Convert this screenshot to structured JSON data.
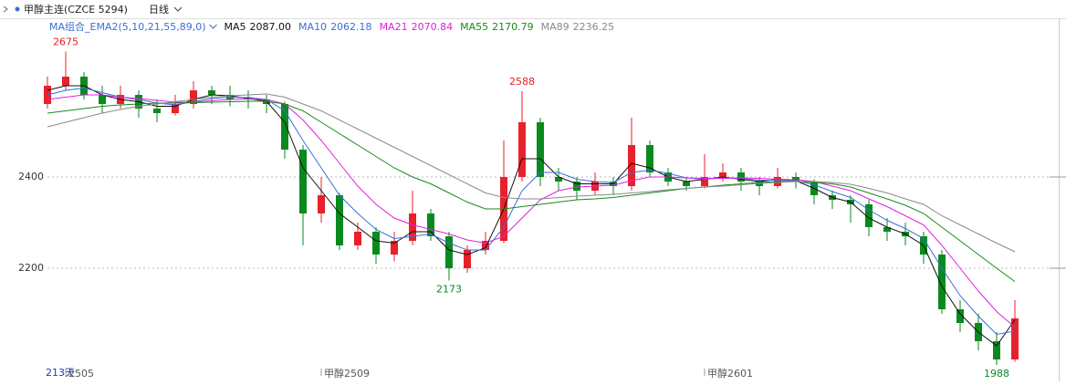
{
  "header": {
    "title": "甲醇主连(CZCE 5294)",
    "period": "日线"
  },
  "chart_data": {
    "type": "candlestick",
    "indicator": "MA组合_EMA2(5,10,21,55,89,0)",
    "span_label": "213天",
    "categories": [
      null,
      "2505",
      null,
      null,
      null,
      null,
      null,
      null,
      null,
      null,
      null,
      null,
      null,
      null,
      null,
      "甲醇2509",
      null,
      null,
      null,
      null,
      null,
      null,
      null,
      null,
      null,
      null,
      null,
      null,
      null,
      null,
      null,
      null,
      null,
      null,
      null,
      null,
      "甲醇2601",
      null,
      null,
      null,
      null,
      null,
      null,
      null,
      null,
      null,
      null,
      null,
      null,
      null,
      null,
      null,
      null,
      null
    ],
    "open": [
      2560,
      2600,
      2620,
      2580,
      2560,
      2580,
      2550,
      2540,
      2560,
      2590,
      2580,
      2575,
      2570,
      2560,
      2460,
      2320,
      2360,
      2250,
      2280,
      2230,
      2260,
      2320,
      2270,
      2200,
      2240,
      2260,
      2400,
      2520,
      2400,
      2390,
      2370,
      2390,
      2380,
      2470,
      2410,
      2390,
      2380,
      2400,
      2410,
      2390,
      2380,
      2400,
      2390,
      2360,
      2350,
      2340,
      2290,
      2280,
      2270,
      2230,
      2110,
      2080,
      2040,
      2000
    ],
    "high": [
      2620,
      2675,
      2630,
      2600,
      2600,
      2590,
      2570,
      2580,
      2610,
      2600,
      2600,
      2590,
      2580,
      2565,
      2470,
      2400,
      2365,
      2300,
      2290,
      2280,
      2370,
      2330,
      2280,
      2250,
      2280,
      2480,
      2588,
      2530,
      2420,
      2400,
      2410,
      2400,
      2530,
      2480,
      2420,
      2400,
      2450,
      2430,
      2420,
      2400,
      2420,
      2410,
      2395,
      2370,
      2360,
      2350,
      2310,
      2300,
      2280,
      2240,
      2130,
      2100,
      2060,
      2130
    ],
    "low": [
      2550,
      2590,
      2570,
      2540,
      2550,
      2530,
      2520,
      2535,
      2550,
      2560,
      2555,
      2550,
      2540,
      2440,
      2250,
      2300,
      2240,
      2240,
      2210,
      2215,
      2250,
      2260,
      2173,
      2190,
      2230,
      2255,
      2390,
      2380,
      2370,
      2350,
      2360,
      2360,
      2370,
      2400,
      2380,
      2370,
      2375,
      2390,
      2370,
      2360,
      2375,
      2375,
      2340,
      2330,
      2300,
      2270,
      2260,
      2250,
      2210,
      2100,
      2060,
      2020,
      1988,
      1995
    ],
    "close": [
      2600,
      2620,
      2580,
      2560,
      2580,
      2550,
      2540,
      2560,
      2590,
      2580,
      2570,
      2570,
      2560,
      2460,
      2320,
      2360,
      2250,
      2280,
      2230,
      2260,
      2320,
      2270,
      2200,
      2240,
      2260,
      2400,
      2520,
      2400,
      2390,
      2370,
      2390,
      2380,
      2470,
      2410,
      2390,
      2380,
      2400,
      2410,
      2390,
      2380,
      2400,
      2390,
      2360,
      2350,
      2340,
      2290,
      2280,
      2270,
      2230,
      2110,
      2080,
      2040,
      2000,
      2090
    ],
    "up_color": "#e8212b",
    "down_color": "#0a8a1e",
    "series": [
      {
        "name": "MA5",
        "color": "#111111",
        "current_label": "2087.00",
        "values": [
          2590,
          2600,
          2600,
          2580,
          2570,
          2565,
          2555,
          2555,
          2570,
          2580,
          2578,
          2572,
          2566,
          2520,
          2420,
          2370,
          2320,
          2290,
          2260,
          2255,
          2280,
          2280,
          2240,
          2230,
          2245,
          2330,
          2440,
          2440,
          2400,
          2385,
          2385,
          2385,
          2430,
          2420,
          2400,
          2390,
          2395,
          2400,
          2395,
          2390,
          2395,
          2392,
          2375,
          2355,
          2345,
          2310,
          2290,
          2275,
          2250,
          2160,
          2100,
          2060,
          2030,
          2087.0
        ]
      },
      {
        "name": "MA10",
        "color": "#3a6fd8",
        "current_label": "2062.18",
        "values": [
          2580,
          2590,
          2595,
          2585,
          2575,
          2570,
          2562,
          2558,
          2565,
          2572,
          2575,
          2574,
          2570,
          2545,
          2480,
          2420,
          2360,
          2320,
          2285,
          2265,
          2270,
          2275,
          2255,
          2240,
          2240,
          2290,
          2370,
          2410,
          2410,
          2395,
          2390,
          2388,
          2410,
          2415,
          2408,
          2398,
          2395,
          2398,
          2397,
          2393,
          2393,
          2392,
          2383,
          2368,
          2355,
          2328,
          2305,
          2287,
          2265,
          2200,
          2140,
          2095,
          2055,
          2062.18
        ]
      },
      {
        "name": "MA21",
        "color": "#e020e0",
        "current_label": "2070.84",
        "values": [
          2570,
          2575,
          2580,
          2580,
          2575,
          2572,
          2568,
          2564,
          2564,
          2567,
          2570,
          2571,
          2570,
          2560,
          2525,
          2480,
          2430,
          2380,
          2340,
          2310,
          2295,
          2285,
          2275,
          2262,
          2255,
          2270,
          2310,
          2350,
          2370,
          2378,
          2380,
          2382,
          2392,
          2400,
          2400,
          2398,
          2397,
          2397,
          2398,
          2397,
          2395,
          2394,
          2390,
          2380,
          2370,
          2352,
          2335,
          2315,
          2295,
          2250,
          2200,
          2150,
          2105,
          2070.84
        ]
      },
      {
        "name": "MA55",
        "color": "#1a8a1a",
        "current_label": "2170.79",
        "values": [
          2540,
          2545,
          2550,
          2555,
          2558,
          2560,
          2562,
          2562,
          2563,
          2564,
          2565,
          2566,
          2566,
          2560,
          2545,
          2520,
          2495,
          2470,
          2445,
          2420,
          2400,
          2385,
          2365,
          2345,
          2330,
          2330,
          2335,
          2340,
          2345,
          2350,
          2352,
          2355,
          2360,
          2365,
          2370,
          2375,
          2378,
          2382,
          2385,
          2388,
          2390,
          2390,
          2388,
          2385,
          2378,
          2365,
          2352,
          2338,
          2320,
          2290,
          2260,
          2230,
          2200,
          2170.79
        ]
      },
      {
        "name": "MA89",
        "color": "#8a8a8a",
        "current_label": "2236.25",
        "values": [
          2510,
          2520,
          2530,
          2540,
          2548,
          2555,
          2560,
          2565,
          2570,
          2575,
          2578,
          2580,
          2582,
          2575,
          2560,
          2545,
          2525,
          2505,
          2485,
          2465,
          2445,
          2425,
          2405,
          2385,
          2365,
          2355,
          2352,
          2352,
          2355,
          2358,
          2360,
          2362,
          2365,
          2368,
          2372,
          2375,
          2378,
          2380,
          2383,
          2386,
          2388,
          2390,
          2390,
          2388,
          2384,
          2375,
          2365,
          2352,
          2340,
          2315,
          2295,
          2275,
          2255,
          2236.25
        ]
      }
    ],
    "ylim": [
      1980,
      2740
    ],
    "yticks": [
      2200,
      2400
    ],
    "grid": true
  }
}
